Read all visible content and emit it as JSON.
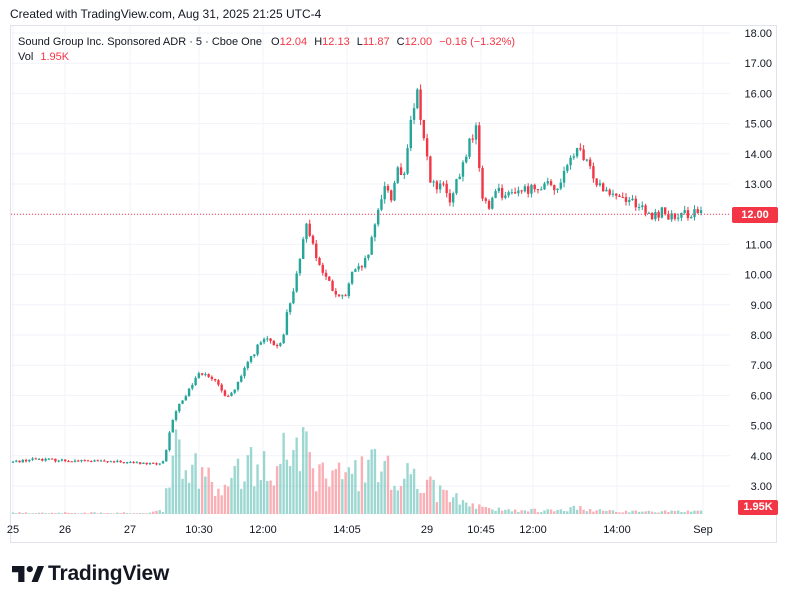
{
  "header": {
    "created_text": "Created with TradingView.com, Aug 31, 2025 21:25 UTC-4"
  },
  "legend": {
    "symbol": "Sound Group Inc. Sponsored ADR · 5 · Cboe One",
    "open_label": "O",
    "open": "12.04",
    "high_label": "H",
    "high": "12.13",
    "low_label": "L",
    "low": "11.87",
    "close_label": "C",
    "close": "12.00",
    "change": "−0.16 (−1.32%)",
    "vol_label": "Vol",
    "vol": "1.95K"
  },
  "badges": {
    "last_price": "12.00",
    "last_volume": "1.95K"
  },
  "brand": {
    "name": "TradingView"
  },
  "colors": {
    "up": "#26a69a",
    "down": "#f23645",
    "grid": "#f0f3fa",
    "last_line": "#f23645"
  },
  "chart_data": {
    "type": "candlestick",
    "y_ticks": [
      "18.00",
      "17.00",
      "16.00",
      "15.00",
      "14.00",
      "13.00",
      "12.00",
      "11.00",
      "10.00",
      "9.00",
      "8.00",
      "7.00",
      "6.00",
      "5.00",
      "4.00",
      "3.00"
    ],
    "ylim": [
      2.6,
      18.1
    ],
    "x_ticks": [
      "25",
      "26",
      "27",
      "10:30",
      "12:00",
      "14:05",
      "29",
      "10:45",
      "12:00",
      "14:00",
      "Sep"
    ],
    "last_price": 12.0,
    "price_keypoints": [
      [
        0,
        3.8
      ],
      [
        14,
        3.9
      ],
      [
        30,
        3.85
      ],
      [
        50,
        3.82
      ],
      [
        70,
        3.78
      ],
      [
        88,
        3.72
      ],
      [
        93,
        3.8
      ],
      [
        95,
        4.5
      ],
      [
        98,
        5.2
      ],
      [
        102,
        5.7
      ],
      [
        107,
        6.1
      ],
      [
        112,
        6.6
      ],
      [
        117,
        6.8
      ],
      [
        122,
        6.6
      ],
      [
        127,
        6.2
      ],
      [
        131,
        6.0
      ],
      [
        135,
        6.1
      ],
      [
        140,
        6.6
      ],
      [
        145,
        7.2
      ],
      [
        150,
        7.6
      ],
      [
        155,
        7.9
      ],
      [
        160,
        7.6
      ],
      [
        165,
        7.8
      ],
      [
        168,
        8.7
      ],
      [
        172,
        9.5
      ],
      [
        176,
        10.4
      ],
      [
        180,
        11.8
      ],
      [
        184,
        11.0
      ],
      [
        188,
        10.3
      ],
      [
        192,
        9.9
      ],
      [
        196,
        9.5
      ],
      [
        200,
        9.2
      ],
      [
        204,
        9.3
      ],
      [
        208,
        10.0
      ],
      [
        213,
        10.2
      ],
      [
        217,
        10.5
      ],
      [
        221,
        11.3
      ],
      [
        225,
        12.4
      ],
      [
        228,
        13.0
      ],
      [
        232,
        12.5
      ],
      [
        236,
        13.6
      ],
      [
        240,
        13.2
      ],
      [
        244,
        15.0
      ],
      [
        248,
        16.0
      ],
      [
        252,
        14.5
      ],
      [
        256,
        13.2
      ],
      [
        260,
        12.8
      ],
      [
        264,
        13.0
      ],
      [
        268,
        12.3
      ],
      [
        272,
        13.0
      ],
      [
        276,
        13.6
      ],
      [
        280,
        14.4
      ],
      [
        284,
        14.8
      ],
      [
        288,
        12.5
      ],
      [
        292,
        12.2
      ],
      [
        296,
        12.9
      ],
      [
        300,
        12.7
      ],
      [
        304,
        12.6
      ],
      [
        308,
        12.8
      ],
      [
        314,
        12.8
      ],
      [
        320,
        12.9
      ],
      [
        326,
        13.0
      ],
      [
        332,
        12.8
      ],
      [
        338,
        13.3
      ],
      [
        342,
        13.8
      ],
      [
        346,
        14.2
      ],
      [
        350,
        13.8
      ],
      [
        354,
        13.5
      ],
      [
        358,
        13.1
      ],
      [
        362,
        12.9
      ],
      [
        366,
        12.8
      ],
      [
        372,
        12.6
      ],
      [
        378,
        12.5
      ],
      [
        384,
        12.3
      ],
      [
        388,
        12.0
      ],
      [
        392,
        11.9
      ],
      [
        398,
        12.1
      ],
      [
        404,
        11.9
      ],
      [
        408,
        11.8
      ],
      [
        412,
        12.0
      ],
      [
        418,
        12.05
      ],
      [
        422,
        12.0
      ]
    ],
    "volume_profile": [
      [
        0,
        0.01
      ],
      [
        80,
        0.01
      ],
      [
        93,
        0.03
      ],
      [
        96,
        0.4
      ],
      [
        100,
        0.6
      ],
      [
        106,
        0.55
      ],
      [
        112,
        0.45
      ],
      [
        118,
        0.35
      ],
      [
        124,
        0.25
      ],
      [
        132,
        0.3
      ],
      [
        140,
        0.35
      ],
      [
        150,
        0.4
      ],
      [
        160,
        0.45
      ],
      [
        166,
        0.55
      ],
      [
        172,
        0.6
      ],
      [
        178,
        0.55
      ],
      [
        186,
        0.35
      ],
      [
        194,
        0.28
      ],
      [
        202,
        0.3
      ],
      [
        212,
        0.32
      ],
      [
        222,
        0.4
      ],
      [
        232,
        0.35
      ],
      [
        242,
        0.3
      ],
      [
        252,
        0.25
      ],
      [
        262,
        0.18
      ],
      [
        272,
        0.12
      ],
      [
        282,
        0.08
      ],
      [
        292,
        0.04
      ],
      [
        310,
        0.03
      ],
      [
        330,
        0.03
      ],
      [
        346,
        0.05
      ],
      [
        356,
        0.03
      ],
      [
        380,
        0.02
      ],
      [
        400,
        0.02
      ],
      [
        422,
        0.02
      ]
    ]
  }
}
